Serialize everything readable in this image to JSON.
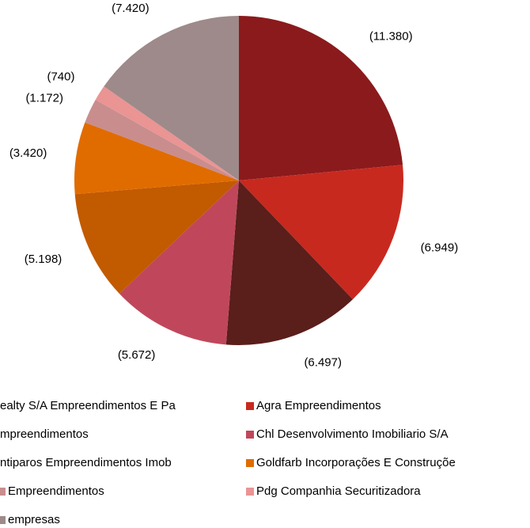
{
  "chart_data": {
    "type": "pie",
    "categories": [
      "ealty S/A Empreendimentos E Pa",
      "Agra Empreendimentos",
      "mpreendimentos",
      "Chl Desenvolvimento Imobiliario S/A",
      "ntiparos Empreendimentos Imob",
      "Goldfarb Incorporações E Construçõe",
      "Empreendimentos",
      "Pdg Companhia Securitizadora",
      "empresas"
    ],
    "values": [
      11380,
      6949,
      6497,
      5672,
      5198,
      3420,
      1172,
      740,
      7420
    ],
    "value_labels": [
      "(11.380)",
      "(6.949)",
      "(6.497)",
      "(5.672)",
      "(5.198)",
      "(3.420)",
      "(1.172)",
      "(740)",
      "(7.420)"
    ],
    "colors": [
      "#8b1a1c",
      "#c8291f",
      "#5a1e1b",
      "#c0475b",
      "#c25a00",
      "#e06c00",
      "#c98d8d",
      "#ea9494",
      "#9e8a8a"
    ]
  }
}
